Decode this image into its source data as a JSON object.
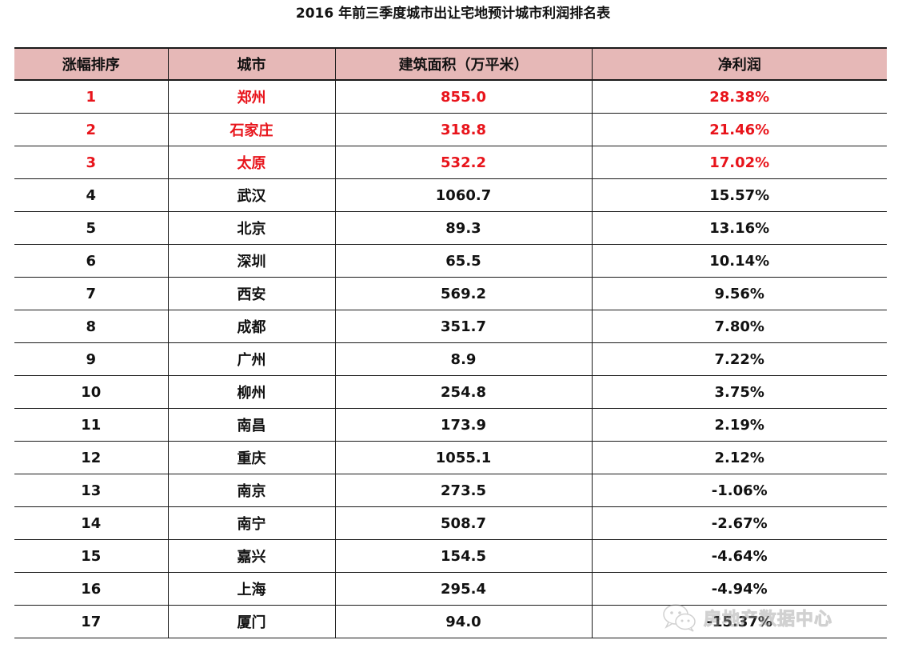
{
  "title": "2016 年前三季度城市出让宅地预计城市利润排名表",
  "table": {
    "headers": [
      "涨幅排序",
      "城市",
      "建筑面积（万平米）",
      "净利润"
    ],
    "rows": [
      {
        "rank": "1",
        "city": "郑州",
        "area": "855.0",
        "profit": "28.38%",
        "highlight": true
      },
      {
        "rank": "2",
        "city": "石家庄",
        "area": "318.8",
        "profit": "21.46%",
        "highlight": true
      },
      {
        "rank": "3",
        "city": "太原",
        "area": "532.2",
        "profit": "17.02%",
        "highlight": true
      },
      {
        "rank": "4",
        "city": "武汉",
        "area": "1060.7",
        "profit": "15.57%",
        "highlight": false
      },
      {
        "rank": "5",
        "city": "北京",
        "area": "89.3",
        "profit": "13.16%",
        "highlight": false
      },
      {
        "rank": "6",
        "city": "深圳",
        "area": "65.5",
        "profit": "10.14%",
        "highlight": false
      },
      {
        "rank": "7",
        "city": "西安",
        "area": "569.2",
        "profit": "9.56%",
        "highlight": false
      },
      {
        "rank": "8",
        "city": "成都",
        "area": "351.7",
        "profit": "7.80%",
        "highlight": false
      },
      {
        "rank": "9",
        "city": "广州",
        "area": "8.9",
        "profit": "7.22%",
        "highlight": false
      },
      {
        "rank": "10",
        "city": "柳州",
        "area": "254.8",
        "profit": "3.75%",
        "highlight": false
      },
      {
        "rank": "11",
        "city": "南昌",
        "area": "173.9",
        "profit": "2.19%",
        "highlight": false
      },
      {
        "rank": "12",
        "city": "重庆",
        "area": "1055.1",
        "profit": "2.12%",
        "highlight": false
      },
      {
        "rank": "13",
        "city": "南京",
        "area": "273.5",
        "profit": "-1.06%",
        "highlight": false
      },
      {
        "rank": "14",
        "city": "南宁",
        "area": "508.7",
        "profit": "-2.67%",
        "highlight": false
      },
      {
        "rank": "15",
        "city": "嘉兴",
        "area": "154.5",
        "profit": "-4.64%",
        "highlight": false
      },
      {
        "rank": "16",
        "city": "上海",
        "area": "295.4",
        "profit": "-4.94%",
        "highlight": false
      },
      {
        "rank": "17",
        "city": "厦门",
        "area": "94.0",
        "profit": "-15.37%",
        "highlight": false
      }
    ]
  },
  "watermark": {
    "text": "房地产数据中心",
    "icon": "wechat-icon"
  },
  "colors": {
    "header_bg": "#e6b8b7",
    "highlight_text": "#e8141b",
    "border": "#1a1a1a"
  }
}
